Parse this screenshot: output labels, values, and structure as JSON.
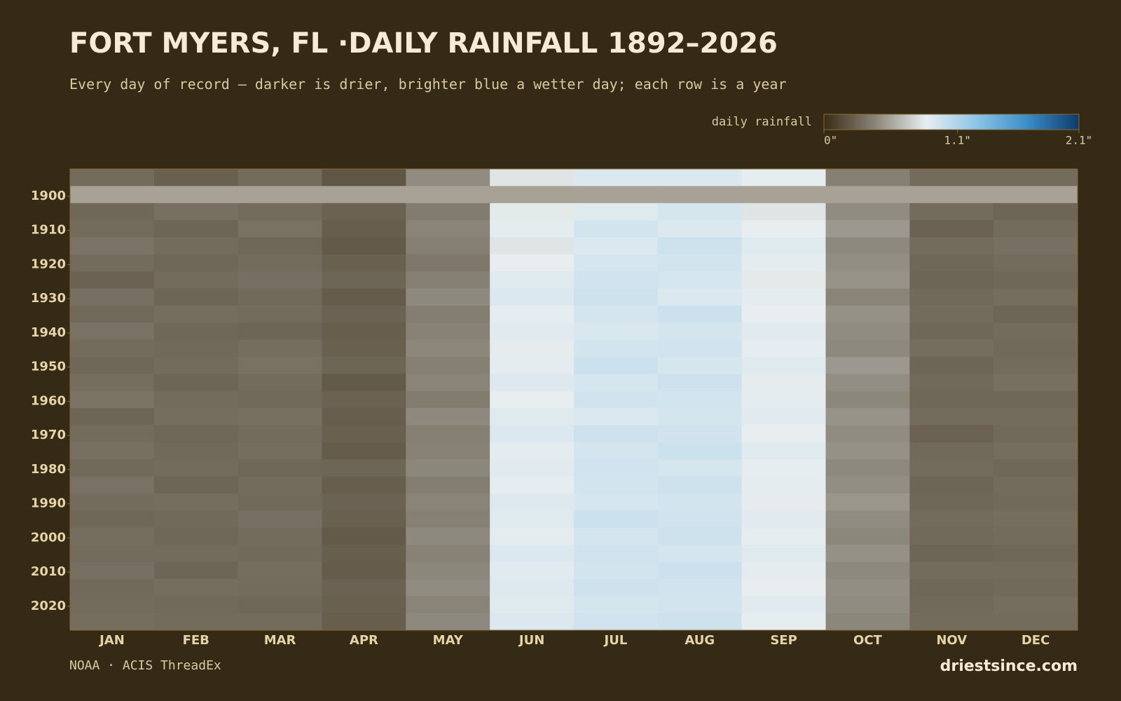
{
  "chart_data": {
    "type": "heatmap",
    "title": "FORT MYERS, FL ·DAILY RAINFALL 1892–2026",
    "subtitle": "Every day of record — darker is drier, brighter blue a wetter day; each row is a year",
    "legend_title": "daily rainfall",
    "source": "NOAA · ACIS ThreadEx",
    "brand": "driestsince.com",
    "colorscale": [
      "#3a2c16",
      "#8a8478",
      "#e8eef0",
      "#8cc4e8",
      "#3a8cc8",
      "#0e3a6a"
    ],
    "missing_color": "#a8a196",
    "clim": [
      0,
      2.1
    ],
    "cticks": [
      {
        "value": 0,
        "label": "0\""
      },
      {
        "value": 1.1,
        "label": "1.1\""
      },
      {
        "value": 2.1,
        "label": "2.1\""
      }
    ],
    "categories": [
      "JAN",
      "FEB",
      "MAR",
      "APR",
      "MAY",
      "JUN",
      "JUL",
      "AUG",
      "SEP",
      "OCT",
      "NOV",
      "DEC"
    ],
    "ybins": [
      1892,
      1897,
      1902,
      1907,
      1912,
      1917,
      1922,
      1927,
      1932,
      1937,
      1942,
      1947,
      1952,
      1957,
      1962,
      1967,
      1972,
      1977,
      1982,
      1987,
      1992,
      1997,
      2002,
      2007,
      2012,
      2017,
      2022,
      2027
    ],
    "ylim": [
      1892,
      2027
    ],
    "yticks": [
      1900,
      1910,
      1920,
      1930,
      1940,
      1950,
      1960,
      1970,
      1980,
      1990,
      2000,
      2010,
      2020
    ],
    "values": [
      [
        0.3,
        0.25,
        0.3,
        0.2,
        0.45,
        0.8,
        0.9,
        0.9,
        0.85,
        0.4,
        0.3,
        0.3
      ],
      [
        null,
        null,
        null,
        null,
        null,
        null,
        null,
        null,
        null,
        null,
        null,
        null
      ],
      [
        0.28,
        0.32,
        0.3,
        0.26,
        0.38,
        0.82,
        0.88,
        0.92,
        0.8,
        0.45,
        0.3,
        0.27
      ],
      [
        0.3,
        0.27,
        0.33,
        0.24,
        0.42,
        0.86,
        0.94,
        0.9,
        0.84,
        0.5,
        0.26,
        0.3
      ],
      [
        0.34,
        0.3,
        0.28,
        0.22,
        0.4,
        0.8,
        0.9,
        0.96,
        0.88,
        0.44,
        0.3,
        0.32
      ],
      [
        0.3,
        0.28,
        0.3,
        0.25,
        0.36,
        0.84,
        0.92,
        0.94,
        0.86,
        0.46,
        0.28,
        0.3
      ],
      [
        0.26,
        0.3,
        0.32,
        0.27,
        0.4,
        0.88,
        0.95,
        0.92,
        0.82,
        0.48,
        0.27,
        0.28
      ],
      [
        0.32,
        0.27,
        0.29,
        0.23,
        0.44,
        0.9,
        0.96,
        0.9,
        0.86,
        0.42,
        0.29,
        0.31
      ],
      [
        0.29,
        0.31,
        0.3,
        0.26,
        0.39,
        0.85,
        0.93,
        0.97,
        0.84,
        0.47,
        0.3,
        0.27
      ],
      [
        0.33,
        0.28,
        0.27,
        0.24,
        0.41,
        0.87,
        0.91,
        0.93,
        0.87,
        0.45,
        0.28,
        0.3
      ],
      [
        0.3,
        0.29,
        0.31,
        0.25,
        0.43,
        0.83,
        0.94,
        0.95,
        0.85,
        0.44,
        0.31,
        0.29
      ],
      [
        0.28,
        0.3,
        0.33,
        0.27,
        0.4,
        0.86,
        0.97,
        0.92,
        0.88,
        0.5,
        0.27,
        0.3
      ],
      [
        0.31,
        0.27,
        0.3,
        0.22,
        0.42,
        0.89,
        0.92,
        0.96,
        0.83,
        0.46,
        0.29,
        0.32
      ],
      [
        0.34,
        0.3,
        0.29,
        0.26,
        0.38,
        0.84,
        0.95,
        0.94,
        0.86,
        0.43,
        0.28,
        0.28
      ],
      [
        0.27,
        0.31,
        0.32,
        0.24,
        0.44,
        0.88,
        0.9,
        0.93,
        0.87,
        0.48,
        0.3,
        0.3
      ],
      [
        0.3,
        0.28,
        0.3,
        0.25,
        0.4,
        0.9,
        0.96,
        0.95,
        0.84,
        0.45,
        0.26,
        0.29
      ],
      [
        0.32,
        0.29,
        0.31,
        0.23,
        0.41,
        0.86,
        0.93,
        0.97,
        0.88,
        0.47,
        0.29,
        0.31
      ],
      [
        0.29,
        0.3,
        0.28,
        0.27,
        0.43,
        0.87,
        0.95,
        0.92,
        0.85,
        0.44,
        0.3,
        0.28
      ],
      [
        0.33,
        0.27,
        0.3,
        0.24,
        0.39,
        0.85,
        0.94,
        0.96,
        0.86,
        0.46,
        0.27,
        0.3
      ],
      [
        0.3,
        0.31,
        0.29,
        0.26,
        0.42,
        0.89,
        0.92,
        0.94,
        0.83,
        0.49,
        0.28,
        0.29
      ],
      [
        0.28,
        0.29,
        0.32,
        0.25,
        0.4,
        0.88,
        0.97,
        0.95,
        0.87,
        0.45,
        0.3,
        0.31
      ],
      [
        0.31,
        0.28,
        0.3,
        0.22,
        0.44,
        0.86,
        0.93,
        0.96,
        0.85,
        0.43,
        0.29,
        0.3
      ],
      [
        0.3,
        0.3,
        0.29,
        0.24,
        0.41,
        0.9,
        0.95,
        0.93,
        0.88,
        0.47,
        0.27,
        0.28
      ],
      [
        0.32,
        0.27,
        0.31,
        0.23,
        0.43,
        0.87,
        0.94,
        0.97,
        0.86,
        0.44,
        0.3,
        0.3
      ],
      [
        0.29,
        0.31,
        0.3,
        0.26,
        0.45,
        0.89,
        0.96,
        0.95,
        0.84,
        0.46,
        0.28,
        0.29
      ],
      [
        0.3,
        0.29,
        0.28,
        0.25,
        0.42,
        0.88,
        0.93,
        0.94,
        0.87,
        0.45,
        0.29,
        0.31
      ],
      [
        0.31,
        0.3,
        0.3,
        0.24,
        0.44,
        0.9,
        0.95,
        0.96,
        0.85,
        0.43,
        0.3,
        0.3
      ]
    ]
  }
}
